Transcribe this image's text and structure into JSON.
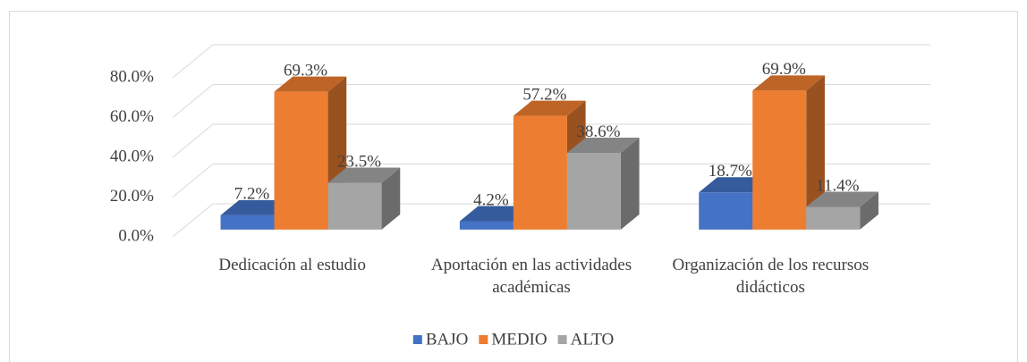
{
  "chart_data": {
    "type": "bar3d",
    "categories": [
      "Dedicación al estudio",
      "Aportación en las actividades académicas",
      "Organización de los recursos didácticos"
    ],
    "series": [
      {
        "name": "BAJO",
        "color": "#4472c4",
        "values": [
          7.2,
          4.2,
          18.7
        ],
        "value_labels": [
          "7.2%",
          "4.2%",
          "18.7%"
        ]
      },
      {
        "name": "MEDIO",
        "color": "#ed7d31",
        "values": [
          69.3,
          57.2,
          69.9
        ],
        "value_labels": [
          "69.3%",
          "57.2%",
          "69.9%"
        ]
      },
      {
        "name": "ALTO",
        "color": "#a5a5a5",
        "values": [
          23.5,
          38.6,
          11.4
        ],
        "value_labels": [
          "23.5%",
          "38.6%",
          "11.4%"
        ]
      }
    ],
    "ylim": [
      0,
      80
    ],
    "yticks": [
      {
        "value": 0,
        "label": "0.0%"
      },
      {
        "value": 20,
        "label": "20.0%"
      },
      {
        "value": 40,
        "label": "40.0%"
      },
      {
        "value": 60,
        "label": "60.0%"
      },
      {
        "value": 80,
        "label": "80.0%"
      }
    ],
    "grid": true,
    "legend": "bottom"
  }
}
